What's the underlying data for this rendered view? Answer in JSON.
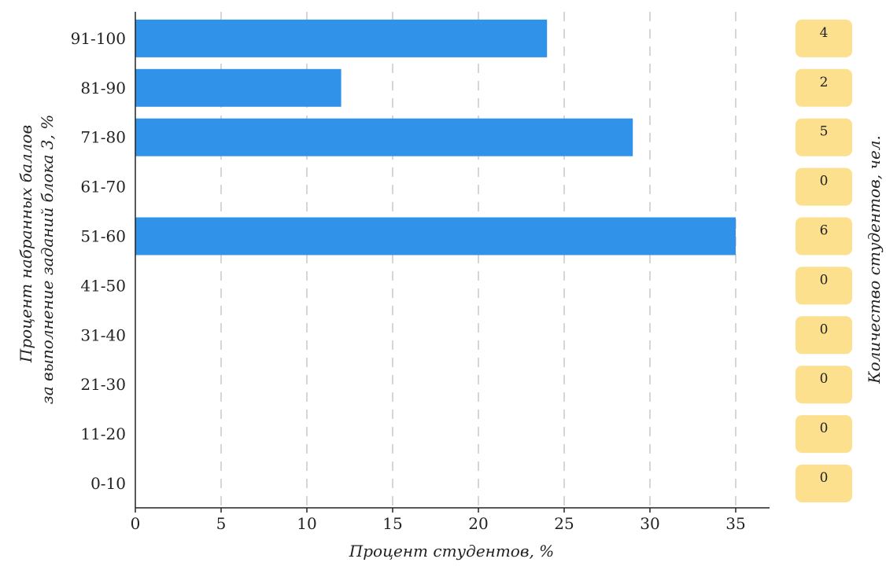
{
  "chart_data": {
    "type": "bar",
    "orientation": "horizontal",
    "categories": [
      "0-10",
      "11-20",
      "21-30",
      "31-40",
      "41-50",
      "51-60",
      "61-70",
      "71-80",
      "81-90",
      "91-100"
    ],
    "values": [
      0,
      0,
      0,
      0,
      0,
      35,
      0,
      29,
      12,
      24
    ],
    "counts": [
      0,
      0,
      0,
      0,
      0,
      6,
      0,
      5,
      2,
      4
    ],
    "xlabel": "Процент студентов, %",
    "ylabel_line1": "Процент набранных баллов",
    "ylabel_line2": "за выполнение заданий блока 3, %",
    "right_label": "Количество студентов, чел.",
    "xlim": [
      0,
      37
    ],
    "xticks": [
      0,
      5,
      10,
      15,
      20,
      25,
      30,
      35
    ],
    "grid": "vertical-dashed",
    "colors": {
      "bar": "#3092E8",
      "count_box": "#FCE08E",
      "grid": "#c8c8c8",
      "axis": "#222222"
    }
  }
}
